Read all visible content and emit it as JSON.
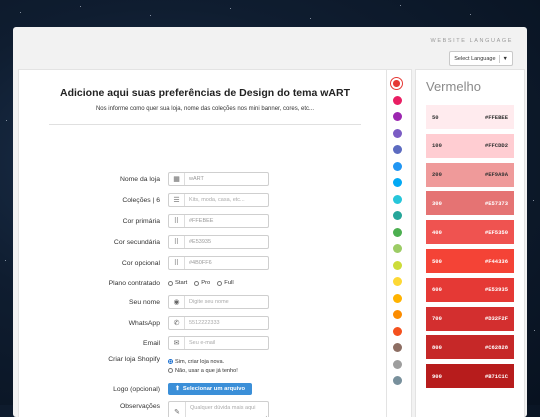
{
  "header": {
    "language_label": "WEBSITE LANGUAGE",
    "language_select": "Select Language"
  },
  "form": {
    "title": "Adicione aqui suas preferências de Design do tema wART",
    "subtitle": "Nos informe como quer sua loja, nome das coleções nos mini banner, cores, etc...",
    "store_name": {
      "label": "Nome da loja",
      "value": "wART"
    },
    "collections": {
      "label": "Coleções | 6",
      "placeholder": "Kits, moda, casa, etc..."
    },
    "primary_color": {
      "label": "Cor primária",
      "value": "#FFEBEE"
    },
    "secondary_color": {
      "label": "Cor secundária",
      "value": "#E53935"
    },
    "optional_color": {
      "label": "Cor opcional",
      "value": "#4B0FF6"
    },
    "plan": {
      "label": "Plano contratado",
      "options": [
        "Start",
        "Pro",
        "Full"
      ]
    },
    "name": {
      "label": "Seu nome",
      "placeholder": "Digite seu nome"
    },
    "whatsapp": {
      "label": "WhatsApp",
      "placeholder": "5512222333"
    },
    "email": {
      "label": "Email",
      "placeholder": "Seu e-mail"
    },
    "shopify": {
      "label": "Criar loja Shopify",
      "options": [
        "Sim, criar loja nova.",
        "Não, usar a que já tenho!"
      ],
      "selected": 0
    },
    "logo": {
      "label": "Logo (opcional)",
      "button": "Selecionar um arquivo"
    },
    "notes": {
      "label": "Observações",
      "placeholder": "Qualquer dúvida mais aqui"
    }
  },
  "swatches": [
    "#e53935",
    "#e91e63",
    "#9c27b0",
    "#7b5cc4",
    "#5c6bc0",
    "#2196f3",
    "#03a9f4",
    "#26c6da",
    "#26a69a",
    "#4caf50",
    "#9ccc65",
    "#cddc39",
    "#fdd835",
    "#ffb300",
    "#fb8c00",
    "#f4511e",
    "#8d6e63",
    "#9e9e9e",
    "#78909c"
  ],
  "palette": {
    "title": "Vermelho",
    "shades": [
      {
        "name": "50",
        "hex": "#FFEBEE",
        "bg": "#ffebee",
        "fg": "#333333"
      },
      {
        "name": "100",
        "hex": "#FFCDD2",
        "bg": "#ffcdd2",
        "fg": "#333333"
      },
      {
        "name": "200",
        "hex": "#EF9A9A",
        "bg": "#ef9a9a",
        "fg": "#333333"
      },
      {
        "name": "300",
        "hex": "#E57373",
        "bg": "#e57373",
        "fg": "#ffffff"
      },
      {
        "name": "400",
        "hex": "#EF5350",
        "bg": "#ef5350",
        "fg": "#ffffff"
      },
      {
        "name": "500",
        "hex": "#F44336",
        "bg": "#f44336",
        "fg": "#ffffff"
      },
      {
        "name": "600",
        "hex": "#E53935",
        "bg": "#e53935",
        "fg": "#ffffff"
      },
      {
        "name": "700",
        "hex": "#D32F2F",
        "bg": "#d32f2f",
        "fg": "#ffffff"
      },
      {
        "name": "800",
        "hex": "#C62828",
        "bg": "#c62828",
        "fg": "#ffffff"
      },
      {
        "name": "900",
        "hex": "#B71C1C",
        "bg": "#b71c1c",
        "fg": "#ffffff"
      }
    ]
  },
  "colors": {
    "accent": "#3b8fd8",
    "selected_swatch": "#e53935"
  }
}
